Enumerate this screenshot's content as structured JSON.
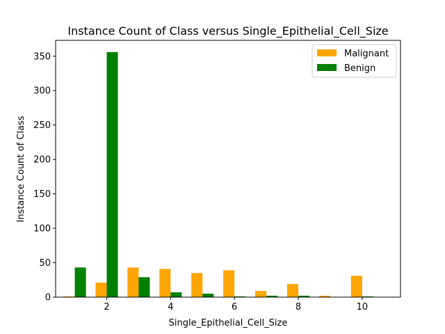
{
  "chart_data": {
    "type": "bar",
    "title": "Instance Count of Class versus Single_Epithelial_Cell_Size",
    "xlabel": "Single_Epithelial_Cell_Size",
    "ylabel": "Instance Count of Class",
    "x": [
      1,
      2,
      3,
      4,
      5,
      6,
      7,
      8,
      9,
      10
    ],
    "xticks": [
      2,
      4,
      6,
      8,
      10
    ],
    "yticks": [
      0,
      50,
      100,
      150,
      200,
      250,
      300,
      350
    ],
    "xlim": [
      0.4,
      11.2
    ],
    "ylim": [
      0,
      373
    ],
    "grid": false,
    "legend_position": "top-right",
    "series": [
      {
        "name": "Malignant",
        "color": "#ffa500",
        "values": [
          1,
          21,
          43,
          41,
          35,
          39,
          9,
          19,
          2,
          31
        ]
      },
      {
        "name": "Benign",
        "color": "#008000",
        "values": [
          43,
          356,
          29,
          7,
          5,
          1,
          2,
          2,
          0,
          1
        ]
      }
    ]
  }
}
